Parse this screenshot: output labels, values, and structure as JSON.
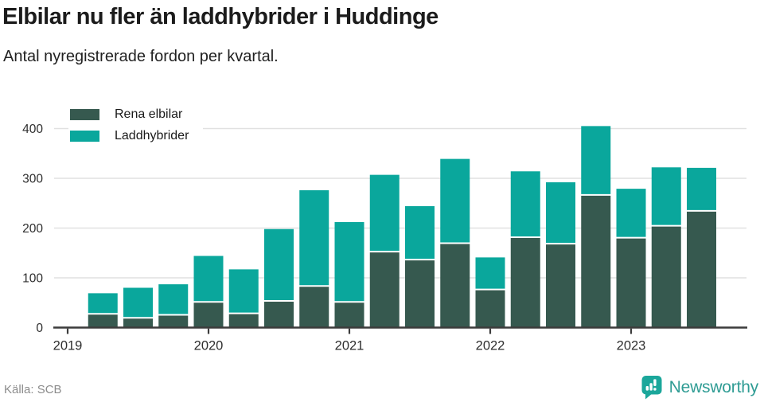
{
  "header": {
    "title": "Elbilar nu fler än laddhybrider i Huddinge",
    "subtitle": "Antal nyregistrerade fordon per kvartal."
  },
  "footer": {
    "source": "Källa: SCB",
    "brand": "Newsworthy"
  },
  "colors": {
    "elbilar": "#36594f",
    "laddhybrider": "#0aa79c",
    "axis": "#3c3c3c",
    "grid": "#e1e1e1",
    "tick_text": "#2e2e2e",
    "brand_teal": "#2f9c94",
    "logo_teal": "#1ba79b"
  },
  "chart_data": {
    "type": "bar",
    "stacked": true,
    "title": "Elbilar nu fler än laddhybrider i Huddinge",
    "subtitle": "Antal nyregistrerade fordon per kvartal.",
    "xlabel": "",
    "ylabel": "",
    "ylim": [
      0,
      430
    ],
    "grid": true,
    "legend_position": "top-left",
    "categories": [
      "2019 Q1",
      "2019 Q2",
      "2019 Q3",
      "2019 Q4",
      "2020 Q1",
      "2020 Q2",
      "2020 Q3",
      "2020 Q4",
      "2021 Q1",
      "2021 Q2",
      "2021 Q3",
      "2021 Q4",
      "2022 Q1",
      "2022 Q2",
      "2022 Q3",
      "2022 Q4",
      "2023 Q1",
      "2023 Q2"
    ],
    "x_tick_labels": [
      "2019",
      "2020",
      "2021",
      "2022",
      "2023"
    ],
    "y_ticks": [
      0,
      100,
      200,
      300,
      400
    ],
    "series": [
      {
        "name": "Rena elbilar",
        "color": "#36594f",
        "values": [
          26,
          18,
          24,
          50,
          27,
          52,
          82,
          50,
          151,
          135,
          168,
          75,
          180,
          167,
          265,
          179,
          203,
          233
        ]
      },
      {
        "name": "Laddhybrider",
        "color": "#0aa79c",
        "values": [
          43,
          62,
          63,
          94,
          90,
          146,
          194,
          162,
          156,
          109,
          171,
          66,
          134,
          125,
          140,
          100,
          119,
          88
        ]
      }
    ]
  }
}
